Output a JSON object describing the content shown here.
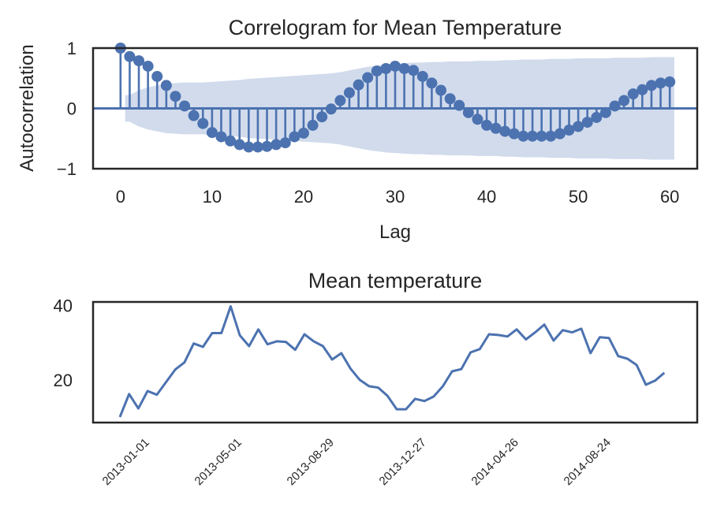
{
  "chart_data": [
    {
      "type": "stem",
      "title": "Correlogram for Mean Temperature",
      "xlabel": "Lag",
      "ylabel": "Autocorrelation",
      "xlim": [
        -3,
        63
      ],
      "ylim": [
        -1,
        1
      ],
      "xticks": [
        0,
        10,
        20,
        30,
        40,
        50,
        60
      ],
      "xtick_labels": [
        "0",
        "10",
        "20",
        "30",
        "40",
        "50",
        "60"
      ],
      "yticks": [
        -1,
        0,
        1
      ],
      "ytick_labels": [
        "−1",
        "0",
        "1"
      ],
      "grid": false,
      "lags": [
        0,
        1,
        2,
        3,
        4,
        5,
        6,
        7,
        8,
        9,
        10,
        11,
        12,
        13,
        14,
        15,
        16,
        17,
        18,
        19,
        20,
        21,
        22,
        23,
        24,
        25,
        26,
        27,
        28,
        29,
        30,
        31,
        32,
        33,
        34,
        35,
        36,
        37,
        38,
        39,
        40,
        41,
        42,
        43,
        44,
        45,
        46,
        47,
        48,
        49,
        50,
        51,
        52,
        53,
        54,
        55,
        56,
        57,
        58,
        59,
        60
      ],
      "acf": [
        1.0,
        0.86,
        0.79,
        0.7,
        0.53,
        0.38,
        0.2,
        0.04,
        -0.12,
        -0.25,
        -0.4,
        -0.47,
        -0.54,
        -0.6,
        -0.64,
        -0.64,
        -0.63,
        -0.6,
        -0.57,
        -0.47,
        -0.41,
        -0.28,
        -0.14,
        -0.01,
        0.13,
        0.26,
        0.39,
        0.51,
        0.62,
        0.66,
        0.7,
        0.66,
        0.63,
        0.53,
        0.42,
        0.3,
        0.16,
        0.05,
        -0.07,
        -0.18,
        -0.28,
        -0.33,
        -0.38,
        -0.42,
        -0.46,
        -0.46,
        -0.46,
        -0.46,
        -0.42,
        -0.36,
        -0.3,
        -0.23,
        -0.15,
        -0.07,
        0.04,
        0.13,
        0.24,
        0.31,
        0.38,
        0.42,
        0.44
      ],
      "confint_halfwidth": [
        null,
        0.22,
        0.3,
        0.35,
        0.38,
        0.41,
        0.42,
        0.43,
        0.43,
        0.43,
        0.44,
        0.45,
        0.46,
        0.47,
        0.49,
        0.5,
        0.51,
        0.52,
        0.53,
        0.54,
        0.55,
        0.56,
        0.57,
        0.58,
        0.6,
        0.63,
        0.66,
        0.69,
        0.71,
        0.73,
        0.74,
        0.75,
        0.76,
        0.76,
        0.77,
        0.77,
        0.78,
        0.78,
        0.78,
        0.79,
        0.79,
        0.79,
        0.8,
        0.8,
        0.81,
        0.81,
        0.81,
        0.82,
        0.82,
        0.82,
        0.83,
        0.83,
        0.83,
        0.83,
        0.84,
        0.84,
        0.84,
        0.84,
        0.85,
        0.85,
        0.85
      ],
      "colors": {
        "stem": "#4c72b0",
        "band": "#d1dbec",
        "axes": "#262626"
      }
    },
    {
      "type": "line",
      "title": "Mean temperature",
      "xlabel": "",
      "ylabel": "",
      "ylim": [
        8.5,
        41
      ],
      "yticks": [
        20,
        40
      ],
      "ytick_labels": [
        "20",
        "40"
      ],
      "xtick_indices": [
        0,
        10,
        20,
        30,
        40,
        50
      ],
      "xtick_labels": [
        "2013-01-01",
        "2013-05-01",
        "2013-08-29",
        "2013-12-27",
        "2014-04-26",
        "2014-08-24"
      ],
      "grid": false,
      "series": [
        {
          "name": "Mean temperature",
          "color": "#4c72b0",
          "values": [
            10.0,
            16.2,
            12.3,
            17.0,
            16.0,
            19.4,
            22.8,
            24.7,
            29.8,
            28.9,
            32.6,
            32.6,
            39.8,
            32.0,
            29.1,
            33.6,
            29.6,
            30.4,
            30.2,
            28.1,
            32.3,
            30.4,
            29.1,
            25.5,
            27.2,
            23.0,
            20.0,
            18.3,
            17.9,
            15.7,
            12.1,
            12.1,
            14.9,
            14.3,
            15.5,
            18.3,
            22.3,
            22.9,
            27.4,
            28.3,
            32.3,
            32.1,
            31.7,
            33.6,
            30.9,
            32.8,
            34.9,
            30.6,
            33.4,
            32.8,
            33.8,
            27.2,
            31.5,
            31.3,
            26.4,
            25.7,
            24.0,
            18.7,
            19.8,
            21.9
          ]
        }
      ]
    }
  ]
}
